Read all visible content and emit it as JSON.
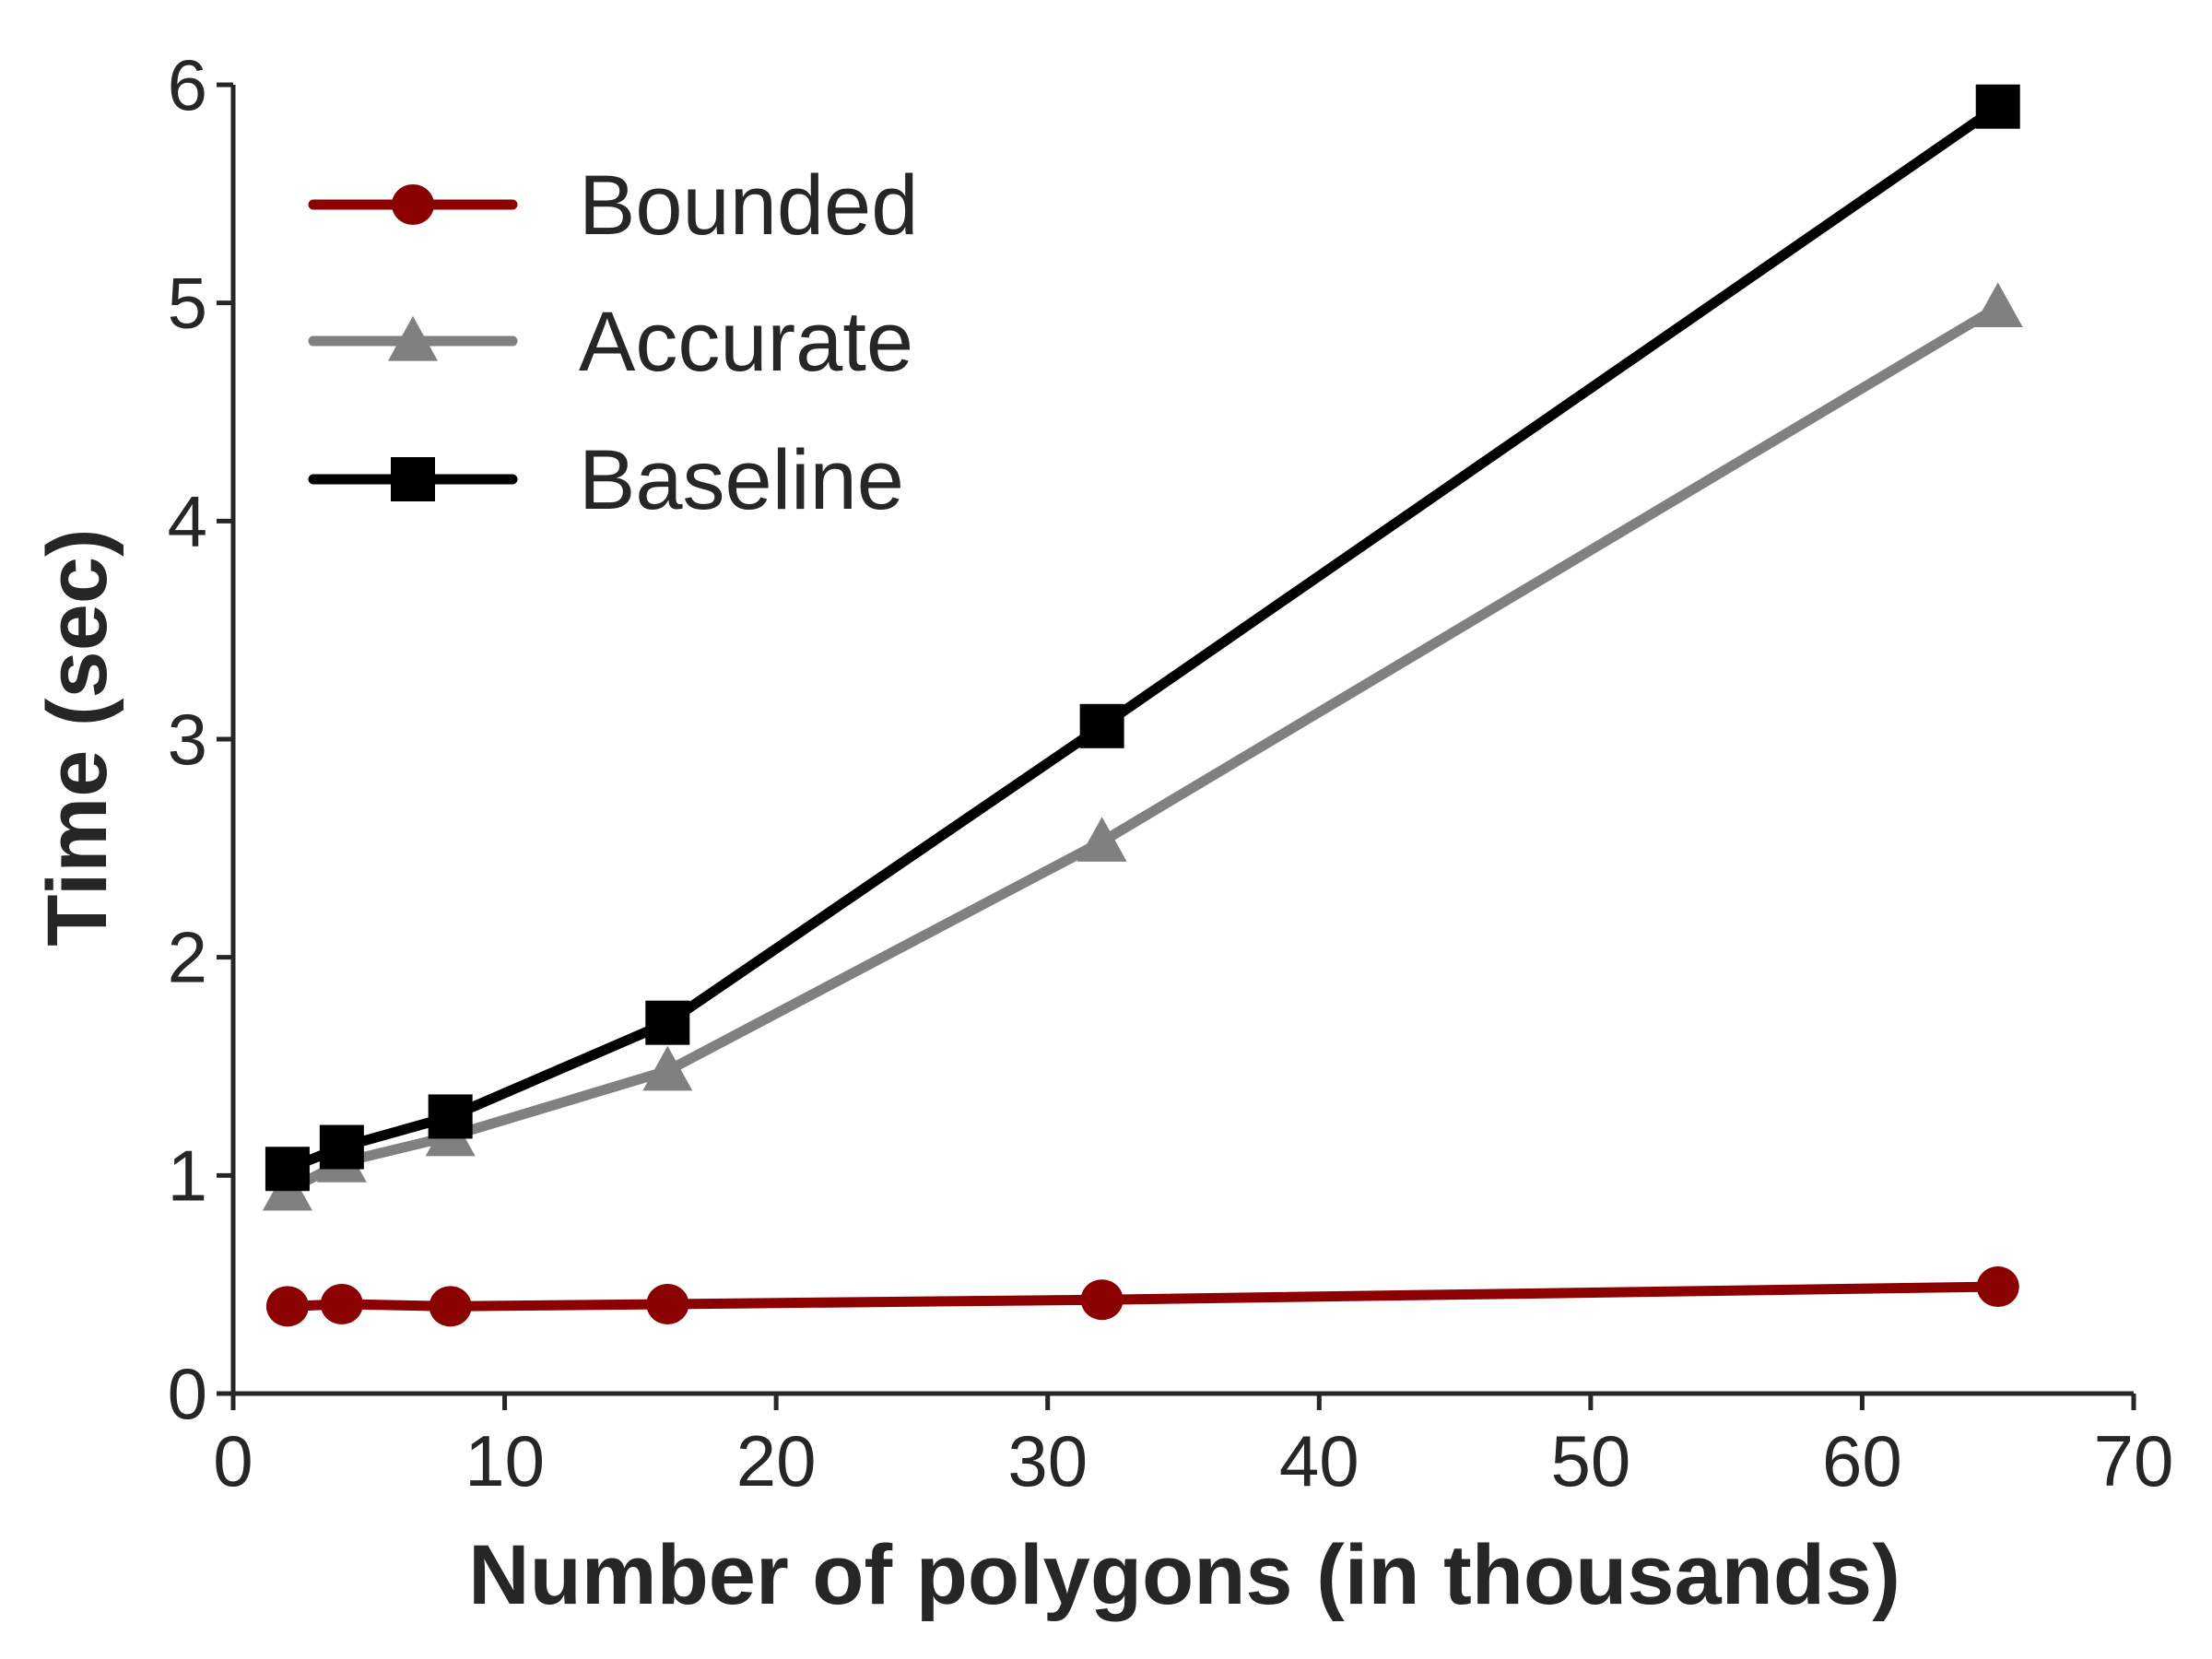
{
  "chart_data": {
    "type": "line",
    "title": "",
    "xlabel": "Number of polygons (in thousands)",
    "ylabel": "Time (sec)",
    "xlim": [
      0,
      70
    ],
    "ylim": [
      0,
      6
    ],
    "xticks": [
      0,
      10,
      20,
      30,
      40,
      50,
      60,
      70
    ],
    "yticks": [
      0,
      1,
      2,
      3,
      4,
      5,
      6
    ],
    "grid": false,
    "legend_position": "top-left",
    "x": [
      2,
      4,
      8,
      16,
      32,
      65
    ],
    "series": [
      {
        "name": "Bounded",
        "values": [
          0.4,
          0.41,
          0.4,
          0.41,
          0.43,
          0.49
        ],
        "color": "#8b0000",
        "marker": "circle"
      },
      {
        "name": "Accurate",
        "values": [
          0.93,
          1.06,
          1.18,
          1.48,
          2.53,
          4.98
        ],
        "color": "#808080",
        "marker": "triangle"
      },
      {
        "name": "Baseline",
        "values": [
          1.03,
          1.13,
          1.27,
          1.7,
          3.06,
          5.9
        ],
        "color": "#000000",
        "marker": "square"
      }
    ]
  }
}
